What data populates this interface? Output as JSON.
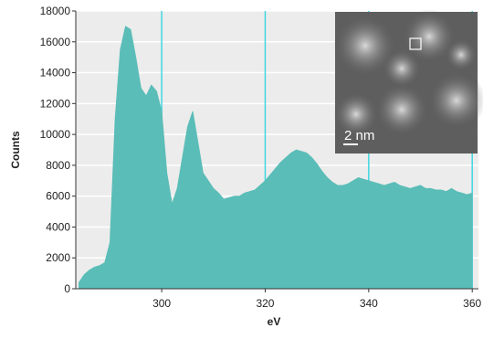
{
  "chart_data": {
    "type": "area",
    "xlabel": "eV",
    "ylabel": "Counts",
    "annotations": [
      "2 nm"
    ],
    "color": "#5bbdb7",
    "grid": true,
    "x": [
      284,
      285,
      286,
      287,
      288,
      289,
      290,
      291,
      292,
      293,
      294,
      295,
      296,
      297,
      298,
      299,
      300,
      301,
      302,
      303,
      304,
      305,
      306,
      307,
      308,
      309,
      310,
      311,
      312,
      313,
      314,
      315,
      316,
      317,
      318,
      319,
      320,
      321,
      322,
      323,
      324,
      325,
      326,
      327,
      328,
      329,
      330,
      331,
      332,
      333,
      334,
      335,
      336,
      337,
      338,
      339,
      340,
      341,
      342,
      343,
      344,
      345,
      346,
      347,
      348,
      349,
      350,
      351,
      352,
      353,
      354,
      355,
      356,
      357,
      358,
      359,
      360
    ],
    "values": [
      400,
      900,
      1200,
      1400,
      1500,
      1700,
      3000,
      11000,
      15500,
      17000,
      16800,
      15000,
      13000,
      12500,
      13200,
      12800,
      11500,
      7500,
      5500,
      6500,
      8500,
      10500,
      11500,
      9500,
      7500,
      7000,
      6500,
      6200,
      5800,
      5900,
      6000,
      6000,
      6200,
      6300,
      6400,
      6700,
      7000,
      7400,
      7800,
      8200,
      8500,
      8800,
      9000,
      8900,
      8800,
      8500,
      8100,
      7600,
      7200,
      6900,
      6700,
      6700,
      6800,
      7000,
      7200,
      7100,
      7000,
      6900,
      6800,
      6700,
      6800,
      6900,
      6700,
      6600,
      6500,
      6600,
      6700,
      6500,
      6500,
      6400,
      6400,
      6300,
      6500,
      6300,
      6200,
      6100,
      6200
    ],
    "xlim": [
      283.4,
      361.2
    ],
    "xticks": [
      300,
      320,
      340,
      360
    ],
    "ylim": [
      0,
      18000
    ],
    "yticks": [
      0,
      2000,
      4000,
      6000,
      8000,
      10000,
      12000,
      14000,
      16000,
      18000
    ]
  }
}
